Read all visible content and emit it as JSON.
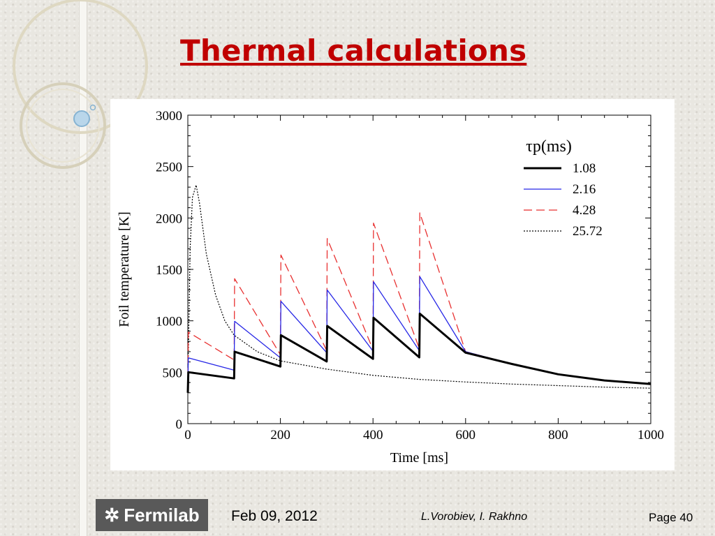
{
  "slide": {
    "title": "Thermal calculations",
    "footer": {
      "logo_text": "Fermilab",
      "date": "Feb 09, 2012",
      "authors": "L.Vorobiev,  I. Rakhno",
      "page": "Page 40"
    }
  },
  "chart_data": {
    "type": "line",
    "title": "",
    "xlabel": "Time [ms]",
    "ylabel": "Foil temperature [K]",
    "xlim": [
      0,
      1000
    ],
    "ylim": [
      0,
      3000
    ],
    "xticks": [
      0,
      200,
      400,
      600,
      800,
      1000
    ],
    "yticks": [
      0,
      500,
      1000,
      1500,
      2000,
      2500,
      3000
    ],
    "legend_title": "τp(ms)",
    "legend_position": "top-right",
    "grid": false,
    "series": [
      {
        "name": "1.08",
        "color": "#000000",
        "style": "solid-thick",
        "points": [
          [
            0,
            300
          ],
          [
            1,
            500
          ],
          [
            100,
            440
          ],
          [
            101,
            700
          ],
          [
            200,
            555
          ],
          [
            201,
            860
          ],
          [
            300,
            605
          ],
          [
            301,
            950
          ],
          [
            400,
            630
          ],
          [
            401,
            1030
          ],
          [
            500,
            645
          ],
          [
            501,
            1070
          ],
          [
            600,
            690
          ],
          [
            700,
            580
          ],
          [
            800,
            480
          ],
          [
            900,
            420
          ],
          [
            1000,
            385
          ]
        ]
      },
      {
        "name": "2.16",
        "color": "#2626e6",
        "style": "solid",
        "points": [
          [
            0,
            320
          ],
          [
            1,
            640
          ],
          [
            100,
            520
          ],
          [
            101,
            995
          ],
          [
            200,
            640
          ],
          [
            201,
            1190
          ],
          [
            300,
            690
          ],
          [
            301,
            1300
          ],
          [
            400,
            705
          ],
          [
            401,
            1380
          ],
          [
            500,
            710
          ],
          [
            501,
            1430
          ],
          [
            600,
            700
          ],
          [
            700,
            580
          ],
          [
            800,
            480
          ],
          [
            900,
            420
          ],
          [
            1000,
            385
          ]
        ]
      },
      {
        "name": "4.28",
        "color": "#e83030",
        "style": "dashed",
        "points": [
          [
            0,
            340
          ],
          [
            1,
            890
          ],
          [
            100,
            620
          ],
          [
            101,
            1410
          ],
          [
            200,
            670
          ],
          [
            201,
            1640
          ],
          [
            300,
            710
          ],
          [
            301,
            1800
          ],
          [
            400,
            720
          ],
          [
            401,
            1950
          ],
          [
            500,
            730
          ],
          [
            501,
            2050
          ],
          [
            600,
            700
          ],
          [
            700,
            580
          ],
          [
            800,
            480
          ],
          [
            900,
            420
          ],
          [
            1000,
            385
          ]
        ]
      },
      {
        "name": "25.72",
        "color": "#000000",
        "style": "dotted",
        "points": [
          [
            0,
            380
          ],
          [
            5,
            1700
          ],
          [
            10,
            2200
          ],
          [
            18,
            2320
          ],
          [
            25,
            2150
          ],
          [
            40,
            1650
          ],
          [
            60,
            1250
          ],
          [
            80,
            1000
          ],
          [
            100,
            860
          ],
          [
            150,
            700
          ],
          [
            200,
            610
          ],
          [
            300,
            530
          ],
          [
            400,
            470
          ],
          [
            500,
            430
          ],
          [
            600,
            405
          ],
          [
            700,
            385
          ],
          [
            800,
            370
          ],
          [
            900,
            355
          ],
          [
            1000,
            345
          ]
        ]
      }
    ]
  }
}
